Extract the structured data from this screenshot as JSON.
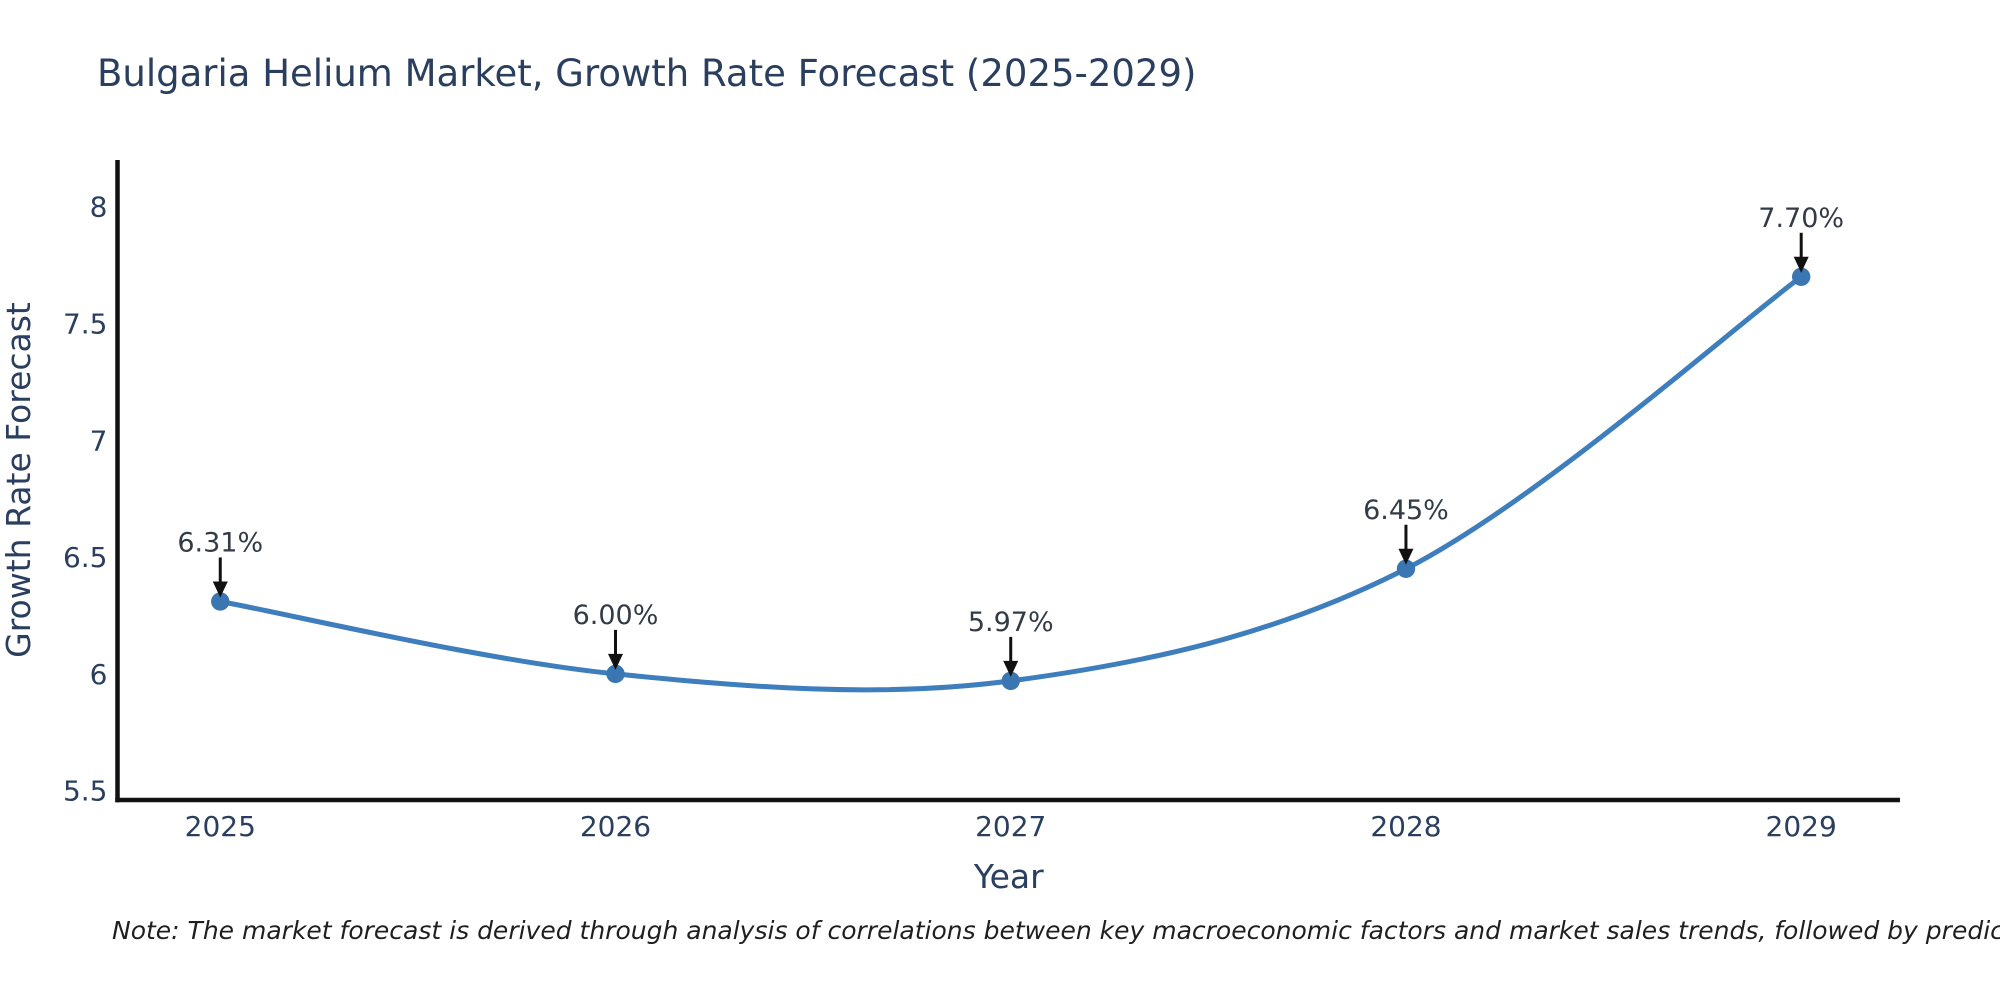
{
  "page": {
    "background": "#ffffff"
  },
  "chart_data": {
    "type": "line",
    "title": "Bulgaria Helium Market, Growth Rate Forecast (2025-2029)",
    "xlabel": "Year",
    "ylabel": "Growth Rate Forecast",
    "x": [
      2025,
      2026,
      2027,
      2028,
      2029
    ],
    "series": [
      {
        "name": "Growth Rate Forecast",
        "values": [
          6.31,
          6.0,
          5.97,
          6.45,
          7.7
        ]
      }
    ],
    "point_labels": [
      "6.31%",
      "6.00%",
      "5.97%",
      "6.45%",
      "7.70%"
    ],
    "y_ticks": [
      "5.5",
      "6",
      "6.5",
      "7",
      "7.5",
      "8"
    ],
    "y_tick_values": [
      5.5,
      6,
      6.5,
      7,
      7.5,
      8
    ],
    "ylim": [
      5.46,
      8.2
    ],
    "xlim": [
      2024.74,
      2029.25
    ],
    "line_shape": "spline",
    "grid": false,
    "legend": "none",
    "colors": {
      "line": "#3E7EBD",
      "marker": "#3A76B2",
      "arrow": "#111111",
      "axis": "#111111",
      "text": "#2a3f5f",
      "annotation_text": "#333b47"
    }
  },
  "note": {
    "text": "Note: The market forecast is derived through analysis of correlations between key macroeconomic factors and market sales trends, followed by predictive modeling to project future sales"
  }
}
